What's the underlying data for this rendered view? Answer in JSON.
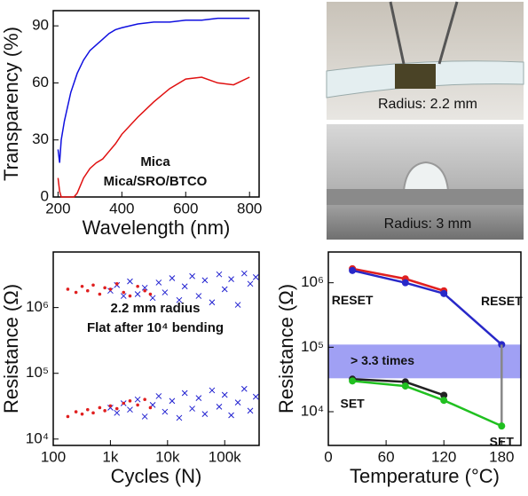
{
  "chart_data": [
    {
      "type": "line",
      "xlabel": "Wavelength (nm)",
      "ylabel": "Transparency (%)",
      "xlim": [
        185,
        830
      ],
      "ylim": [
        0,
        98
      ],
      "xticks": [
        200,
        400,
        600,
        800
      ],
      "yticks": [
        0,
        30,
        60,
        90
      ],
      "series": [
        {
          "name": "Mica",
          "color": "#1010e0",
          "x": [
            200,
            205,
            210,
            220,
            240,
            260,
            280,
            300,
            320,
            340,
            360,
            380,
            400,
            450,
            500,
            550,
            600,
            650,
            700,
            750,
            800
          ],
          "values": [
            25,
            18,
            30,
            40,
            55,
            65,
            72,
            77,
            80,
            83,
            86,
            88,
            89,
            91,
            92,
            92,
            93,
            93,
            94,
            94,
            94
          ]
        },
        {
          "name": "Mica/SRO/BTCO",
          "color": "#e01010",
          "x": [
            200,
            205,
            210,
            250,
            260,
            280,
            300,
            320,
            340,
            360,
            380,
            400,
            450,
            500,
            550,
            600,
            650,
            700,
            750,
            800
          ],
          "values": [
            10,
            3,
            0,
            0,
            2,
            10,
            15,
            18,
            20,
            24,
            28,
            33,
            42,
            50,
            57,
            62,
            63,
            60,
            59,
            63
          ]
        }
      ]
    },
    {
      "type": "scatter",
      "xscale": "log",
      "yscale": "log",
      "xlabel": "Cycles (N)",
      "ylabel": "Resistance (Ω)",
      "xlim": [
        100,
        400000
      ],
      "ylim": [
        8000,
        7000000
      ],
      "xticks": [
        100,
        {
          "value": 1000,
          "label": "1k"
        },
        {
          "value": 10000,
          "label": "10k"
        },
        {
          "value": 100000,
          "label": "100k"
        }
      ],
      "yticks": [
        {
          "value": 10000,
          "label": "10⁴"
        },
        {
          "value": 100000,
          "label": "10⁵"
        },
        {
          "value": 1000000,
          "label": "10⁶"
        }
      ],
      "series": [
        {
          "name": "2.2 mm radius",
          "color": "#2020d0",
          "marker": "x",
          "x": [
            1000,
            1300,
            1700,
            2200,
            3000,
            4000,
            5500,
            7000,
            9000,
            12000,
            16000,
            20000,
            27000,
            35000,
            45000,
            60000,
            80000,
            100000,
            130000,
            170000,
            220000,
            280000,
            350000,
            1000,
            1300,
            1700,
            2200,
            3000,
            4000,
            5500,
            7000,
            9000,
            12000,
            16000,
            20000,
            27000,
            35000,
            45000,
            60000,
            80000,
            100000,
            130000,
            170000,
            220000,
            280000,
            350000
          ],
          "values": [
            1800000,
            2200000,
            1500000,
            2500000,
            1600000,
            2000000,
            1400000,
            2400000,
            1700000,
            2800000,
            1300000,
            2100000,
            3000000,
            1500000,
            2600000,
            1200000,
            3200000,
            1900000,
            2700000,
            1100000,
            3300000,
            2300000,
            2900000,
            30000,
            25000,
            35000,
            28000,
            40000,
            22000,
            33000,
            45000,
            26000,
            38000,
            21000,
            50000,
            29000,
            42000,
            24000,
            55000,
            31000,
            47000,
            23000,
            36000,
            58000,
            27000,
            44000
          ]
        },
        {
          "name": "Flat after 10⁴ bending",
          "color": "#e02020",
          "marker": "dot",
          "x": [
            180,
            250,
            320,
            400,
            500,
            650,
            800,
            1000,
            1300,
            1700,
            2200,
            3000,
            4000,
            5000,
            180,
            250,
            320,
            400,
            500,
            650,
            800,
            1000,
            1300,
            1700,
            2200,
            3000,
            4000,
            5000
          ],
          "values": [
            1900000,
            1700000,
            2100000,
            1800000,
            2200000,
            1600000,
            2000000,
            1900000,
            2300000,
            1700000,
            1500000,
            2100000,
            1800000,
            1600000,
            22000,
            26000,
            24000,
            28000,
            25000,
            30000,
            27000,
            32000,
            29000,
            35000,
            38000,
            33000,
            40000,
            30000
          ]
        }
      ]
    },
    {
      "type": "line",
      "yscale": "log",
      "xlabel": "Temperature (°C)",
      "ylabel": "Resistance (Ω)",
      "xlim": [
        0,
        200
      ],
      "ylim": [
        3000,
        3000000
      ],
      "xticks": [
        0,
        60,
        120,
        180
      ],
      "yticks": [
        {
          "value": 10000,
          "label": "10⁴"
        },
        {
          "value": 100000,
          "label": "10⁵"
        },
        {
          "value": 1000000,
          "label": "10⁶"
        }
      ],
      "band": [
        33000,
        110000
      ],
      "band_label": "> 3.3 times",
      "band_color": "#8080f0",
      "annotations": [
        {
          "text": "RESET",
          "x": 25,
          "y": 520000
        },
        {
          "text": "RESET",
          "x": 180,
          "y": 500000
        },
        {
          "text": "SET",
          "x": 25,
          "y": 13000
        },
        {
          "text": "SET",
          "x": 180,
          "y": 3300
        }
      ],
      "series": [
        {
          "color": "#e02020",
          "x": [
            25,
            80,
            120
          ],
          "values": [
            1650000,
            1150000,
            750000
          ]
        },
        {
          "color": "#2828c8",
          "x": [
            25,
            80,
            120,
            180
          ],
          "values": [
            1550000,
            1000000,
            680000,
            110000
          ]
        },
        {
          "color": "#888888",
          "x": [
            180,
            180
          ],
          "values": [
            110000,
            6000
          ]
        },
        {
          "color": "#222222",
          "x": [
            25,
            80,
            120
          ],
          "values": [
            32000,
            29000,
            18000
          ]
        },
        {
          "color": "#20c020",
          "x": [
            25,
            80,
            120,
            180
          ],
          "values": [
            30000,
            25000,
            15000,
            6000
          ]
        }
      ]
    }
  ],
  "photos": [
    {
      "label": "Radius: 2.2 mm"
    },
    {
      "label": "Radius: 3 mm"
    }
  ]
}
